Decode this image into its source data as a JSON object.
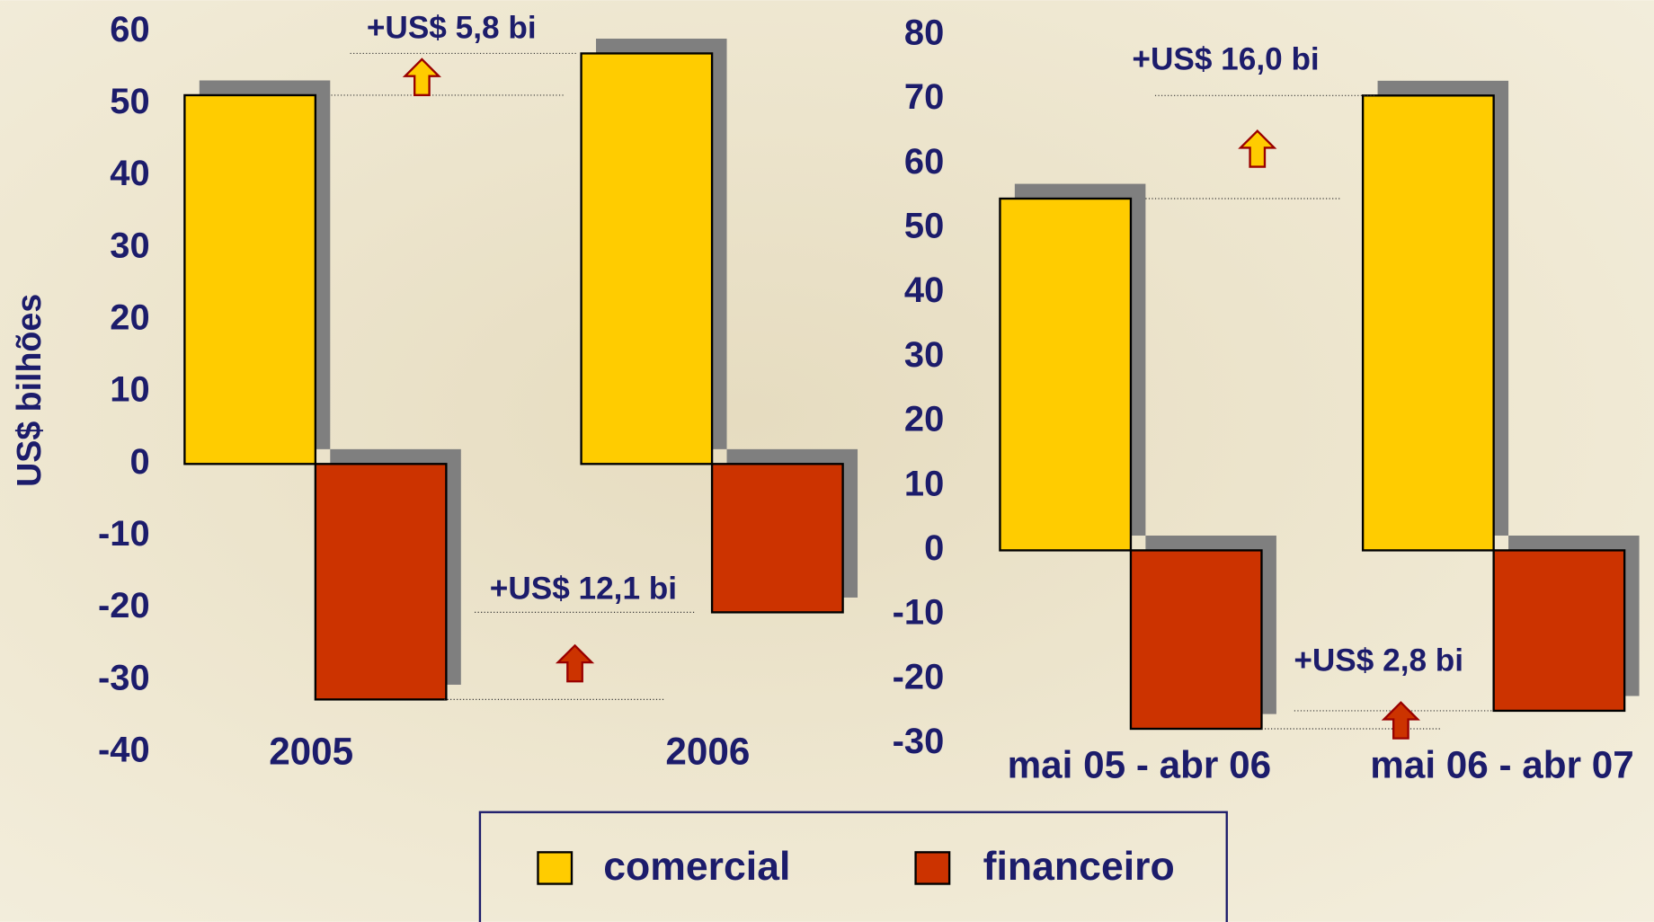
{
  "chart_data": [
    {
      "type": "bar",
      "y_label": "US$ bilhões",
      "categories": [
        "2005",
        "2006"
      ],
      "series": [
        {
          "name": "comercial",
          "color": "#ffcc00",
          "values": [
            51.2,
            57.0
          ]
        },
        {
          "name": "financeiro",
          "color": "#cc3300",
          "values": [
            -32.7,
            -20.6
          ]
        }
      ],
      "ylim": [
        -40,
        60
      ],
      "yticks": [
        -40,
        -30,
        -20,
        -10,
        0,
        10,
        20,
        30,
        40,
        50,
        60
      ],
      "annotations": [
        "+US$ 5,8 bi",
        "+US$ 12,1 bi"
      ]
    },
    {
      "type": "bar",
      "categories": [
        "mai 05 - abr 06",
        "mai 06 - abr 07"
      ],
      "series": [
        {
          "color": "#ffcc00",
          "values": [
            54.6,
            70.6
          ]
        },
        {
          "color": "#cc3300",
          "values": [
            -27.7,
            -24.9
          ]
        }
      ],
      "ylim": [
        -30,
        80
      ],
      "yticks": [
        -30,
        -20,
        -10,
        0,
        10,
        20,
        30,
        40,
        50,
        60,
        70,
        80
      ],
      "annotations": [
        "+US$ 16,0 bi",
        "+US$ 2,8 bi"
      ]
    }
  ]
}
